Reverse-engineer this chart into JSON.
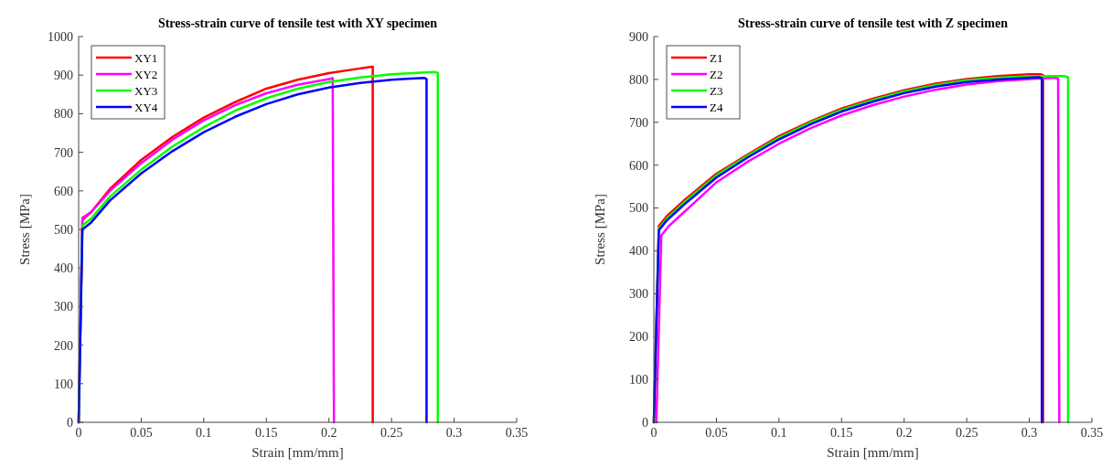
{
  "chart_data": [
    {
      "type": "line",
      "title": "Stress-strain curve of tensile test with XY specimen",
      "xlabel": "Strain [mm/mm]",
      "ylabel": "Stress [MPa]",
      "xlim": [
        0,
        0.35
      ],
      "ylim": [
        0,
        1000
      ],
      "xticks": [
        0,
        0.05,
        0.1,
        0.15,
        0.2,
        0.25,
        0.3,
        0.35
      ],
      "yticks": [
        0,
        100,
        200,
        300,
        400,
        500,
        600,
        700,
        800,
        900,
        1000
      ],
      "legend": "top left",
      "series": [
        {
          "name": "XY1",
          "color": "#ff0000",
          "x": [
            0,
            0.003,
            0.01,
            0.025,
            0.05,
            0.075,
            0.1,
            0.125,
            0.15,
            0.175,
            0.2,
            0.22,
            0.233,
            0.235,
            0.235
          ],
          "values": [
            0,
            525,
            545,
            605,
            680,
            740,
            790,
            830,
            865,
            888,
            905,
            915,
            921,
            922,
            0
          ]
        },
        {
          "name": "XY2",
          "color": "#ff00ff",
          "x": [
            0,
            0.003,
            0.01,
            0.025,
            0.05,
            0.075,
            0.1,
            0.125,
            0.15,
            0.175,
            0.2,
            0.203,
            0.204
          ],
          "values": [
            0,
            530,
            545,
            600,
            672,
            733,
            783,
            822,
            853,
            875,
            890,
            892,
            0
          ]
        },
        {
          "name": "XY3",
          "color": "#00ff00",
          "x": [
            0,
            0.003,
            0.01,
            0.025,
            0.05,
            0.075,
            0.1,
            0.125,
            0.15,
            0.175,
            0.2,
            0.225,
            0.25,
            0.27,
            0.284,
            0.287,
            0.287
          ],
          "values": [
            0,
            510,
            528,
            585,
            655,
            715,
            765,
            808,
            840,
            865,
            882,
            894,
            902,
            906,
            908,
            906,
            0
          ]
        },
        {
          "name": "XY4",
          "color": "#0000ff",
          "x": [
            0,
            0.003,
            0.01,
            0.025,
            0.05,
            0.075,
            0.1,
            0.125,
            0.15,
            0.175,
            0.2,
            0.225,
            0.25,
            0.265,
            0.276,
            0.278,
            0.278
          ],
          "values": [
            0,
            500,
            518,
            575,
            645,
            703,
            752,
            792,
            825,
            850,
            868,
            880,
            888,
            891,
            893,
            890,
            0
          ]
        }
      ]
    },
    {
      "type": "line",
      "title": "Stress-strain curve of tensile test with Z specimen",
      "xlabel": "Strain [mm/mm]",
      "ylabel": "Stress [MPa]",
      "xlim": [
        0,
        0.35
      ],
      "ylim": [
        0,
        900
      ],
      "xticks": [
        0,
        0.05,
        0.1,
        0.15,
        0.2,
        0.25,
        0.3,
        0.35
      ],
      "yticks": [
        0,
        100,
        200,
        300,
        400,
        500,
        600,
        700,
        800,
        900
      ],
      "legend": "top left",
      "series": [
        {
          "name": "Z1",
          "color": "#ff0000",
          "x": [
            0,
            0.004,
            0.01,
            0.025,
            0.05,
            0.075,
            0.1,
            0.125,
            0.15,
            0.175,
            0.2,
            0.225,
            0.25,
            0.275,
            0.3,
            0.309,
            0.311,
            0.311
          ],
          "values": [
            0,
            458,
            480,
            520,
            580,
            625,
            668,
            702,
            732,
            755,
            775,
            790,
            801,
            808,
            812,
            812,
            810,
            0
          ]
        },
        {
          "name": "Z2",
          "color": "#ff00ff",
          "x": [
            0.002,
            0.006,
            0.012,
            0.027,
            0.05,
            0.075,
            0.1,
            0.125,
            0.15,
            0.175,
            0.2,
            0.225,
            0.25,
            0.275,
            0.3,
            0.32,
            0.323,
            0.324
          ],
          "values": [
            0,
            436,
            458,
            498,
            560,
            608,
            650,
            686,
            716,
            740,
            760,
            776,
            788,
            796,
            801,
            804,
            802,
            0
          ]
        },
        {
          "name": "Z3",
          "color": "#00ff00",
          "x": [
            0,
            0.004,
            0.01,
            0.025,
            0.05,
            0.075,
            0.1,
            0.125,
            0.15,
            0.175,
            0.2,
            0.225,
            0.25,
            0.275,
            0.3,
            0.328,
            0.331,
            0.331
          ],
          "values": [
            0,
            452,
            474,
            515,
            576,
            622,
            664,
            699,
            729,
            752,
            772,
            787,
            798,
            804,
            807,
            808,
            805,
            0
          ]
        },
        {
          "name": "Z4",
          "color": "#0000ff",
          "x": [
            0,
            0.004,
            0.01,
            0.025,
            0.05,
            0.075,
            0.1,
            0.125,
            0.15,
            0.175,
            0.2,
            0.225,
            0.25,
            0.275,
            0.3,
            0.308,
            0.31,
            0.31
          ],
          "values": [
            0,
            448,
            470,
            510,
            571,
            618,
            660,
            695,
            725,
            748,
            768,
            783,
            794,
            800,
            804,
            805,
            802,
            0
          ]
        }
      ]
    }
  ]
}
